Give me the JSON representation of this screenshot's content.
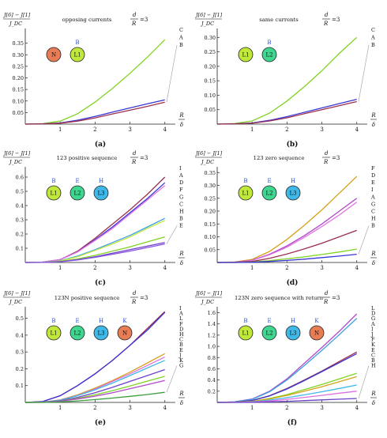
{
  "chart_data": [
    {
      "type": "line",
      "panel_label": "(a)",
      "title": "opposing currents",
      "ylabel_num": "J[6] − J[1]",
      "ylabel_den": "J_DC",
      "ratio_left": "d",
      "ratio_right": "=3",
      "ratio_den": "R",
      "xlabel_num": "R",
      "xlabel_den": "δ",
      "xlim": [
        0,
        4.3
      ],
      "ylim": [
        0,
        0.4
      ],
      "xticks": [
        1,
        2,
        3,
        4
      ],
      "yticks": [
        0.05,
        0.1,
        0.15,
        0.2,
        0.25,
        0.3,
        0.35
      ],
      "ytick_labels": [
        "0.05",
        "0.10",
        "0.15",
        "0.20",
        "0.25",
        "0.30",
        "0.35"
      ],
      "x": [
        0,
        0.5,
        1,
        1.5,
        2,
        2.5,
        3,
        3.5,
        4
      ],
      "series": [
        {
          "name": "C",
          "color": "#7fd321",
          "values": [
            0,
            0.002,
            0.013,
            0.045,
            0.095,
            0.155,
            0.22,
            0.29,
            0.365
          ]
        },
        {
          "name": "A",
          "color": "#3a35d6",
          "values": [
            0,
            0.001,
            0.005,
            0.017,
            0.033,
            0.052,
            0.07,
            0.088,
            0.105
          ]
        },
        {
          "name": "B",
          "color": "#9a2f4e",
          "values": [
            0,
            0.001,
            0.004,
            0.013,
            0.027,
            0.044,
            0.06,
            0.077,
            0.095
          ]
        }
      ],
      "end_labels": [
        "C",
        "A",
        "B"
      ],
      "conductors": [
        {
          "label": "N",
          "top_label": "",
          "color": "#e87d55"
        },
        {
          "label": "L1",
          "top_label": "B",
          "color": "#bfe83a"
        }
      ]
    },
    {
      "type": "line",
      "panel_label": "(b)",
      "title": "same currents",
      "ylabel_num": "J[6] − J[1]",
      "ylabel_den": "J_DC",
      "ratio_left": "d",
      "ratio_right": "=3",
      "ratio_den": "R",
      "xlabel_num": "R",
      "xlabel_den": "δ",
      "xlim": [
        0,
        4.3
      ],
      "ylim": [
        0,
        0.32
      ],
      "xticks": [
        1,
        2,
        3,
        4
      ],
      "yticks": [
        0.05,
        0.1,
        0.15,
        0.2,
        0.25,
        0.3
      ],
      "ytick_labels": [
        "0.05",
        "0.10",
        "0.15",
        "0.20",
        "0.25",
        "0.30"
      ],
      "x": [
        0,
        0.5,
        1,
        1.5,
        2,
        2.5,
        3,
        3.5,
        4
      ],
      "series": [
        {
          "name": "C",
          "color": "#7fd321",
          "values": [
            0,
            0.002,
            0.011,
            0.038,
            0.08,
            0.13,
            0.185,
            0.245,
            0.3
          ]
        },
        {
          "name": "A",
          "color": "#3a35d6",
          "values": [
            0,
            0.001,
            0.004,
            0.013,
            0.026,
            0.041,
            0.056,
            0.071,
            0.086
          ]
        },
        {
          "name": "B",
          "color": "#9a2f4e",
          "values": [
            0,
            0.001,
            0.003,
            0.011,
            0.022,
            0.036,
            0.05,
            0.064,
            0.078
          ]
        }
      ],
      "end_labels": [
        "C",
        "A",
        "B"
      ],
      "conductors": [
        {
          "label": "L1",
          "top_label": "",
          "color": "#bfe83a"
        },
        {
          "label": "L2",
          "top_label": "B",
          "color": "#3fd690"
        }
      ]
    },
    {
      "type": "line",
      "panel_label": "(c)",
      "title": "123 positive sequence",
      "ylabel_num": "J[6] − J[1]",
      "ylabel_den": "J_DC",
      "ratio_left": "d",
      "ratio_right": "=3",
      "ratio_den": "R",
      "xlabel_num": "R",
      "xlabel_den": "δ",
      "xlim": [
        0,
        4.3
      ],
      "ylim": [
        0,
        0.65
      ],
      "xticks": [
        1,
        2,
        3,
        4
      ],
      "yticks": [
        0.1,
        0.2,
        0.3,
        0.4,
        0.5,
        0.6
      ],
      "ytick_labels": [
        "0.1",
        "0.2",
        "0.3",
        "0.4",
        "0.5",
        "0.6"
      ],
      "x": [
        0,
        0.5,
        1,
        1.5,
        2,
        2.5,
        3,
        3.5,
        4
      ],
      "series": [
        {
          "name": "I",
          "color": "#9a2f4e",
          "values": [
            0,
            0.003,
            0.02,
            0.08,
            0.17,
            0.27,
            0.37,
            0.48,
            0.6
          ]
        },
        {
          "name": "A",
          "color": "#3a35d6",
          "values": [
            0,
            0.003,
            0.02,
            0.075,
            0.16,
            0.25,
            0.35,
            0.45,
            0.56
          ]
        },
        {
          "name": "D",
          "color": "#e070e0",
          "values": [
            0,
            0.003,
            0.02,
            0.075,
            0.155,
            0.24,
            0.34,
            0.44,
            0.54
          ]
        },
        {
          "name": "G",
          "color": "#3aa0e0",
          "values": [
            0,
            0.002,
            0.012,
            0.045,
            0.09,
            0.14,
            0.19,
            0.25,
            0.31
          ]
        },
        {
          "name": "C",
          "color": "#c9e83a",
          "values": [
            0,
            0.002,
            0.011,
            0.04,
            0.085,
            0.13,
            0.18,
            0.24,
            0.295
          ]
        },
        {
          "name": "H",
          "color": "#7fd321",
          "values": [
            0,
            0.001,
            0.007,
            0.025,
            0.05,
            0.08,
            0.11,
            0.145,
            0.18
          ]
        },
        {
          "name": "B",
          "color": "#6b40c8",
          "values": [
            0,
            0.001,
            0.006,
            0.02,
            0.04,
            0.065,
            0.09,
            0.115,
            0.14
          ]
        },
        {
          "name": "E",
          "color": "#8a55e0",
          "values": [
            0,
            0.001,
            0.005,
            0.018,
            0.036,
            0.058,
            0.08,
            0.105,
            0.13
          ]
        }
      ],
      "end_labels": [
        "I",
        "A",
        "D",
        "F",
        "G",
        "C",
        "H",
        "B",
        "E"
      ],
      "conductors": [
        {
          "label": "L1",
          "top_label": "B",
          "color": "#bfe83a"
        },
        {
          "label": "L2",
          "top_label": "E",
          "color": "#3fd690"
        },
        {
          "label": "L3",
          "top_label": "H",
          "color": "#3fb8e8"
        }
      ]
    },
    {
      "type": "line",
      "panel_label": "(d)",
      "title": "123 zero sequence",
      "ylabel_num": "J[6] − J[1]",
      "ylabel_den": "J_DC",
      "ratio_left": "d",
      "ratio_right": "=3",
      "ratio_den": "R",
      "xlabel_num": "R",
      "xlabel_den": "δ",
      "xlim": [
        0,
        4.3
      ],
      "ylim": [
        0,
        0.36
      ],
      "xticks": [
        1,
        2,
        3,
        4
      ],
      "yticks": [
        0.05,
        0.1,
        0.15,
        0.2,
        0.25,
        0.3,
        0.35
      ],
      "ytick_labels": [
        "0.05",
        "0.10",
        "0.15",
        "0.20",
        "0.25",
        "0.30",
        "0.35"
      ],
      "x": [
        0,
        0.5,
        1,
        1.5,
        2,
        2.5,
        3,
        3.5,
        4
      ],
      "series": [
        {
          "name": "F",
          "color": "#d6a21a",
          "values": [
            0,
            0.002,
            0.012,
            0.043,
            0.09,
            0.145,
            0.205,
            0.27,
            0.335
          ]
        },
        {
          "name": "D",
          "color": "#b048c8",
          "values": [
            0,
            0.001,
            0.009,
            0.032,
            0.065,
            0.105,
            0.15,
            0.2,
            0.25
          ]
        },
        {
          "name": "I",
          "color": "#e070e0",
          "values": [
            0,
            0.001,
            0.008,
            0.03,
            0.06,
            0.098,
            0.14,
            0.185,
            0.235
          ]
        },
        {
          "name": "B",
          "color": "#9a2f4e",
          "values": [
            0,
            0.001,
            0.004,
            0.016,
            0.033,
            0.053,
            0.075,
            0.1,
            0.125
          ]
        },
        {
          "name": "H",
          "color": "#7fd321",
          "values": [
            0,
            0.0,
            0.002,
            0.007,
            0.014,
            0.022,
            0.031,
            0.041,
            0.052
          ]
        },
        {
          "name": "E",
          "color": "#3a35d6",
          "values": [
            0,
            0.0,
            0.001,
            0.004,
            0.008,
            0.013,
            0.019,
            0.025,
            0.032
          ]
        }
      ],
      "end_labels": [
        "F",
        "D",
        "E",
        "I",
        "A",
        "G",
        "C",
        "H",
        "B"
      ],
      "conductors": [
        {
          "label": "L1",
          "top_label": "B",
          "color": "#bfe83a"
        },
        {
          "label": "L2",
          "top_label": "E",
          "color": "#3fd690"
        },
        {
          "label": "L3",
          "top_label": "H",
          "color": "#3fb8e8"
        }
      ]
    },
    {
      "type": "line",
      "panel_label": "(e)",
      "title": "123N positive sequence",
      "ylabel_num": "J[6] − J[1]",
      "ylabel_den": "J_DC",
      "ratio_left": "d",
      "ratio_right": "=3",
      "ratio_den": "R",
      "xlabel_num": "R",
      "xlabel_den": "δ",
      "xlim": [
        0,
        4.3
      ],
      "ylim": [
        0,
        0.55
      ],
      "xticks": [
        1,
        2,
        3,
        4
      ],
      "yticks": [
        0.1,
        0.2,
        0.3,
        0.4,
        0.5
      ],
      "ytick_labels": [
        "0.1",
        "0.2",
        "0.3",
        "0.4",
        "0.5"
      ],
      "x": [
        0,
        0.5,
        1,
        1.5,
        2,
        2.5,
        3,
        3.5,
        4
      ],
      "series": [
        {
          "name": "I",
          "color": "#9a2f4e",
          "values": [
            0,
            0.005,
            0.04,
            0.1,
            0.17,
            0.25,
            0.34,
            0.44,
            0.54
          ]
        },
        {
          "name": "A",
          "color": "#3a35d6",
          "values": [
            0,
            0.005,
            0.04,
            0.1,
            0.17,
            0.25,
            0.34,
            0.43,
            0.535
          ]
        },
        {
          "name": "F",
          "color": "#d6a21a",
          "values": [
            0,
            0.002,
            0.015,
            0.045,
            0.085,
            0.13,
            0.18,
            0.235,
            0.29
          ]
        },
        {
          "name": "D",
          "color": "#e070e0",
          "values": [
            0,
            0.002,
            0.014,
            0.042,
            0.08,
            0.125,
            0.17,
            0.22,
            0.27
          ]
        },
        {
          "name": "H",
          "color": "#3fb8e8",
          "values": [
            0,
            0.002,
            0.013,
            0.04,
            0.075,
            0.115,
            0.16,
            0.205,
            0.25
          ]
        },
        {
          "name": "B",
          "color": "#6b40c8",
          "values": [
            0,
            0.001,
            0.01,
            0.03,
            0.058,
            0.09,
            0.125,
            0.16,
            0.195
          ]
        },
        {
          "name": "J",
          "color": "#7fd321",
          "values": [
            0,
            0.001,
            0.008,
            0.024,
            0.045,
            0.07,
            0.098,
            0.127,
            0.155
          ]
        },
        {
          "name": "K",
          "color": "#b048c8",
          "values": [
            0,
            0.001,
            0.007,
            0.02,
            0.037,
            0.058,
            0.082,
            0.106,
            0.13
          ]
        },
        {
          "name": "G",
          "color": "#3a9e3a",
          "values": [
            0,
            0.0,
            0.003,
            0.009,
            0.017,
            0.026,
            0.036,
            0.047,
            0.06
          ]
        }
      ],
      "end_labels": [
        "I",
        "A",
        "L",
        "F",
        "D",
        "H",
        "C",
        "B",
        "E",
        "J",
        "K",
        "G"
      ],
      "conductors": [
        {
          "label": "L1",
          "top_label": "B",
          "color": "#bfe83a"
        },
        {
          "label": "L2",
          "top_label": "E",
          "color": "#3fd690"
        },
        {
          "label": "L3",
          "top_label": "H",
          "color": "#3fb8e8"
        },
        {
          "label": "N",
          "top_label": "K",
          "color": "#e87d55"
        }
      ]
    },
    {
      "type": "line",
      "panel_label": "(f)",
      "title": "123N zero sequence with return",
      "ylabel_num": "J[6] − J[1]",
      "ylabel_den": "J_DC",
      "ratio_left": "d",
      "ratio_right": "=3",
      "ratio_den": "R",
      "xlabel_num": "R",
      "xlabel_den": "δ",
      "xlim": [
        0,
        4.3
      ],
      "ylim": [
        0,
        1.65
      ],
      "xticks": [
        1,
        2,
        3,
        4
      ],
      "yticks": [
        0.2,
        0.4,
        0.6,
        0.8,
        1.0,
        1.2,
        1.4,
        1.6
      ],
      "ytick_labels": [
        "0.2",
        "0.4",
        "0.6",
        "0.8",
        "1.0",
        "1.2",
        "1.4",
        "1.6"
      ],
      "x": [
        0,
        0.5,
        1,
        1.5,
        2,
        2.5,
        3,
        3.5,
        4
      ],
      "series": [
        {
          "name": "L",
          "color": "#b048c8",
          "values": [
            0,
            0.01,
            0.06,
            0.2,
            0.42,
            0.7,
            0.98,
            1.27,
            1.58
          ]
        },
        {
          "name": "D",
          "color": "#3aa0e0",
          "values": [
            0,
            0.01,
            0.055,
            0.19,
            0.4,
            0.66,
            0.93,
            1.21,
            1.5
          ]
        },
        {
          "name": "A",
          "color": "#9a2f4e",
          "values": [
            0,
            0.006,
            0.035,
            0.12,
            0.25,
            0.4,
            0.56,
            0.73,
            0.9
          ]
        },
        {
          "name": "I",
          "color": "#3a35d6",
          "values": [
            0,
            0.006,
            0.034,
            0.115,
            0.24,
            0.39,
            0.55,
            0.71,
            0.87
          ]
        },
        {
          "name": "F",
          "color": "#7fd321",
          "values": [
            0,
            0.003,
            0.02,
            0.07,
            0.14,
            0.23,
            0.32,
            0.42,
            0.52
          ]
        },
        {
          "name": "K",
          "color": "#d6a21a",
          "values": [
            0,
            0.003,
            0.018,
            0.062,
            0.125,
            0.2,
            0.28,
            0.37,
            0.46
          ]
        },
        {
          "name": "C",
          "color": "#3fb8e8",
          "values": [
            0,
            0.002,
            0.012,
            0.042,
            0.085,
            0.135,
            0.19,
            0.25,
            0.31
          ]
        },
        {
          "name": "B",
          "color": "#e070e0",
          "values": [
            0,
            0.001,
            0.008,
            0.026,
            0.055,
            0.09,
            0.125,
            0.165,
            0.2
          ]
        },
        {
          "name": "H",
          "color": "#6b40c8",
          "values": [
            0,
            0.0,
            0.003,
            0.01,
            0.02,
            0.032,
            0.045,
            0.058,
            0.07
          ]
        }
      ],
      "end_labels": [
        "L",
        "D",
        "G",
        "A",
        "I",
        "J",
        "F",
        "K",
        "E",
        "C",
        "B",
        "H"
      ],
      "conductors": [
        {
          "label": "L1",
          "top_label": "B",
          "color": "#bfe83a"
        },
        {
          "label": "L2",
          "top_label": "E",
          "color": "#3fd690"
        },
        {
          "label": "L3",
          "top_label": "H",
          "color": "#3fb8e8"
        },
        {
          "label": "N",
          "top_label": "K",
          "color": "#e87d55"
        }
      ]
    }
  ]
}
